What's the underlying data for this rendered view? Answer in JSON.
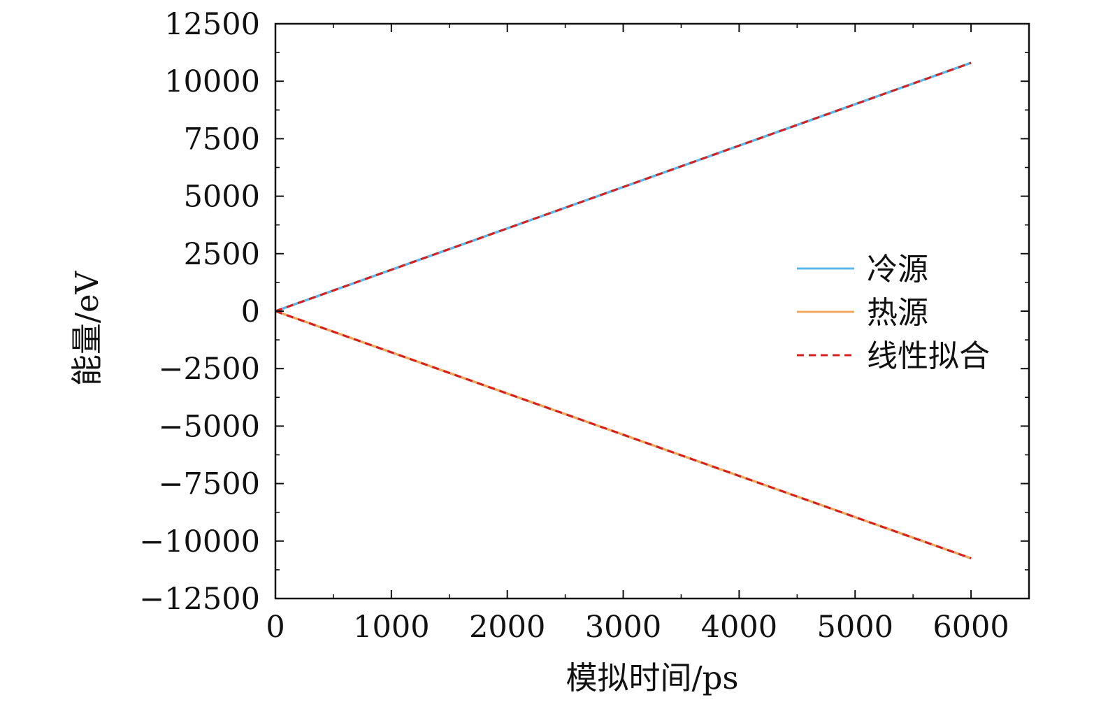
{
  "chart_data": {
    "type": "line",
    "xlabel": "模拟时间/ps",
    "ylabel": "能量/eV",
    "xlim": [
      0,
      6500
    ],
    "ylim": [
      -12500,
      12500
    ],
    "x_ticks": [
      0,
      1000,
      2000,
      3000,
      4000,
      5000,
      6000
    ],
    "x_tick_labels": [
      "0",
      "1000",
      "2000",
      "3000",
      "4000",
      "5000",
      "6000"
    ],
    "y_ticks": [
      12500,
      10000,
      7500,
      5000,
      2500,
      0,
      -2500,
      -5000,
      -7500,
      -10000,
      -12500
    ],
    "y_tick_labels": [
      "12500",
      "10000",
      "7500",
      "5000",
      "2500",
      "0",
      "−2500",
      "−5000",
      "−7500",
      "−10000",
      "−12500"
    ],
    "x_minor_step": 500,
    "y_minor_step": 1250,
    "grid": false,
    "legend_position": "right",
    "series": [
      {
        "name": "冷源",
        "style": "solid",
        "color": "#5bb8e8",
        "x": [
          0,
          6000
        ],
        "y": [
          0,
          10800
        ]
      },
      {
        "name": "热源",
        "style": "solid",
        "color": "#f0a860",
        "x": [
          0,
          6000
        ],
        "y": [
          0,
          -10750
        ]
      },
      {
        "name": "线性拟合",
        "style": "dashed",
        "color": "#d62020",
        "x": [
          0,
          6000
        ],
        "y": [
          0,
          10800
        ]
      },
      {
        "name": "线性拟合",
        "style": "dashed",
        "color": "#d62020",
        "x": [
          0,
          6000
        ],
        "y": [
          0,
          -10750
        ],
        "legend": false
      }
    ]
  }
}
